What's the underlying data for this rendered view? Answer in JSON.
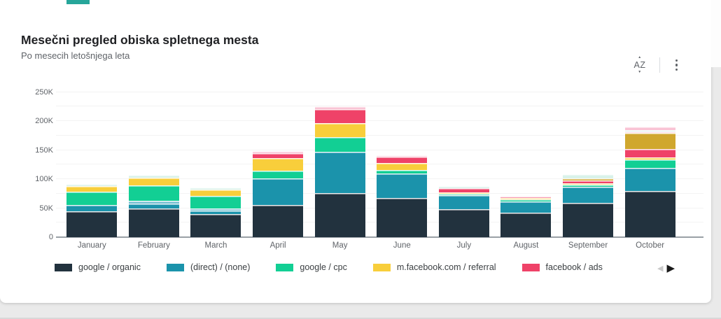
{
  "card": {
    "title": "Mesečni pregled obiska spletnega mesta",
    "subtitle": "Po mesecih letošnjega leta"
  },
  "toolbar": {
    "sort_icon_text": "AZ",
    "sort_icon": "sort-az-icon",
    "menu_icon": "more-vert-icon"
  },
  "colors": {
    "accent_topbar": "#26a69a",
    "organic": "#22323e",
    "direct": "#1b93ab",
    "cpc": "#12cf94",
    "referral": "#f8ce3b",
    "ads": "#ef4268",
    "gold": "#d0a72e",
    "lightblue": "#74bfd0",
    "mint": "#d9f2ea",
    "lightpink": "#f9c3d4",
    "lightteal": "#c9ece3"
  },
  "legend": {
    "items": [
      {
        "label": "google / organic",
        "color_key": "organic"
      },
      {
        "label": "(direct) / (none)",
        "color_key": "direct"
      },
      {
        "label": "google / cpc",
        "color_key": "cpc"
      },
      {
        "label": "m.facebook.com / referral",
        "color_key": "referral"
      },
      {
        "label": "facebook / ads",
        "color_key": "ads"
      }
    ],
    "prev_arrow": "◀",
    "next_arrow": "▶"
  },
  "chart_data": {
    "type": "bar",
    "stacked": true,
    "title": "Mesečni pregled obiska spletnega mesta",
    "xlabel": "",
    "ylabel": "",
    "value_unit": "visits, thousands (K)",
    "ylim": [
      0,
      250000
    ],
    "gridline_step": 25000,
    "yticks": [
      "0",
      "50K",
      "100K",
      "150K",
      "200K",
      "250K"
    ],
    "grid": true,
    "legend_position": "bottom",
    "categories": [
      "January",
      "February",
      "March",
      "April",
      "May",
      "June",
      "July",
      "August",
      "September",
      "October"
    ],
    "series": [
      {
        "name": "google / organic",
        "color_key": "organic",
        "values": [
          45,
          50,
          40,
          56,
          76,
          67,
          48,
          42,
          59,
          80
        ]
      },
      {
        "name": "(direct) / (none)",
        "color_key": "direct",
        "values": [
          11,
          8,
          6,
          45,
          71,
          43,
          24,
          20,
          28,
          39
        ]
      },
      {
        "name": "google / cpc",
        "color_key": "cpc",
        "values": [
          22,
          26,
          21,
          14,
          25,
          6,
          3,
          3,
          3,
          15
        ]
      },
      {
        "name": "m.facebook.com / referral",
        "color_key": "referral",
        "values": [
          10,
          13,
          11,
          21,
          24,
          12,
          2,
          3,
          3,
          3
        ]
      },
      {
        "name": "facebook / ads",
        "color_key": "ads",
        "values": [
          0,
          0,
          0,
          9,
          25,
          10,
          7,
          2,
          5,
          15
        ]
      }
    ],
    "unlabeled_series_note": "legend is paginated; extra small segments visible in light blue, gold, light pink, light teal, mint",
    "bar_segments": [
      [
        {
          "k": "organic",
          "v": 45
        },
        {
          "k": "direct",
          "v": 11
        },
        {
          "k": "cpc",
          "v": 22
        },
        {
          "k": "referral",
          "v": 10
        },
        {
          "k": "mint",
          "v": 4
        }
      ],
      [
        {
          "k": "organic",
          "v": 50
        },
        {
          "k": "direct",
          "v": 8
        },
        {
          "k": "lightblue",
          "v": 5
        },
        {
          "k": "cpc",
          "v": 26
        },
        {
          "k": "referral",
          "v": 13
        },
        {
          "k": "mint",
          "v": 5
        }
      ],
      [
        {
          "k": "organic",
          "v": 40
        },
        {
          "k": "direct",
          "v": 6
        },
        {
          "k": "lightblue",
          "v": 4
        },
        {
          "k": "cpc",
          "v": 21
        },
        {
          "k": "referral",
          "v": 11
        },
        {
          "k": "mint",
          "v": 4
        }
      ],
      [
        {
          "k": "organic",
          "v": 56
        },
        {
          "k": "direct",
          "v": 45
        },
        {
          "k": "cpc",
          "v": 14
        },
        {
          "k": "referral",
          "v": 21
        },
        {
          "k": "ads",
          "v": 9
        },
        {
          "k": "lightpink",
          "v": 3
        }
      ],
      [
        {
          "k": "organic",
          "v": 76
        },
        {
          "k": "direct",
          "v": 71
        },
        {
          "k": "cpc",
          "v": 25
        },
        {
          "k": "referral",
          "v": 24
        },
        {
          "k": "ads",
          "v": 25
        },
        {
          "k": "lightpink",
          "v": 4
        }
      ],
      [
        {
          "k": "organic",
          "v": 67
        },
        {
          "k": "direct",
          "v": 43
        },
        {
          "k": "cpc",
          "v": 6
        },
        {
          "k": "referral",
          "v": 12
        },
        {
          "k": "ads",
          "v": 10
        },
        {
          "k": "lightpink",
          "v": 3
        }
      ],
      [
        {
          "k": "organic",
          "v": 48
        },
        {
          "k": "direct",
          "v": 24
        },
        {
          "k": "cpc",
          "v": 3
        },
        {
          "k": "referral",
          "v": 2
        },
        {
          "k": "ads",
          "v": 7
        },
        {
          "k": "mint",
          "v": 4
        }
      ],
      [
        {
          "k": "organic",
          "v": 42
        },
        {
          "k": "direct",
          "v": 20
        },
        {
          "k": "cpc",
          "v": 3
        },
        {
          "k": "referral",
          "v": 3
        },
        {
          "k": "ads",
          "v": 2
        },
        {
          "k": "lightpink",
          "v": 1
        },
        {
          "k": "mint",
          "v": 1
        }
      ],
      [
        {
          "k": "organic",
          "v": 59
        },
        {
          "k": "direct",
          "v": 28
        },
        {
          "k": "cpc",
          "v": 3
        },
        {
          "k": "referral",
          "v": 3
        },
        {
          "k": "ads",
          "v": 5
        },
        {
          "k": "gold",
          "v": 3
        },
        {
          "k": "mint",
          "v": 8
        }
      ],
      [
        {
          "k": "organic",
          "v": 80
        },
        {
          "k": "direct",
          "v": 39
        },
        {
          "k": "cpc",
          "v": 15
        },
        {
          "k": "referral",
          "v": 3
        },
        {
          "k": "ads",
          "v": 15
        },
        {
          "k": "gold",
          "v": 27
        },
        {
          "k": "lightpink",
          "v": 3
        },
        {
          "k": "lightteal",
          "v": 3
        },
        {
          "k": "lightpink",
          "v": 6
        }
      ]
    ]
  }
}
